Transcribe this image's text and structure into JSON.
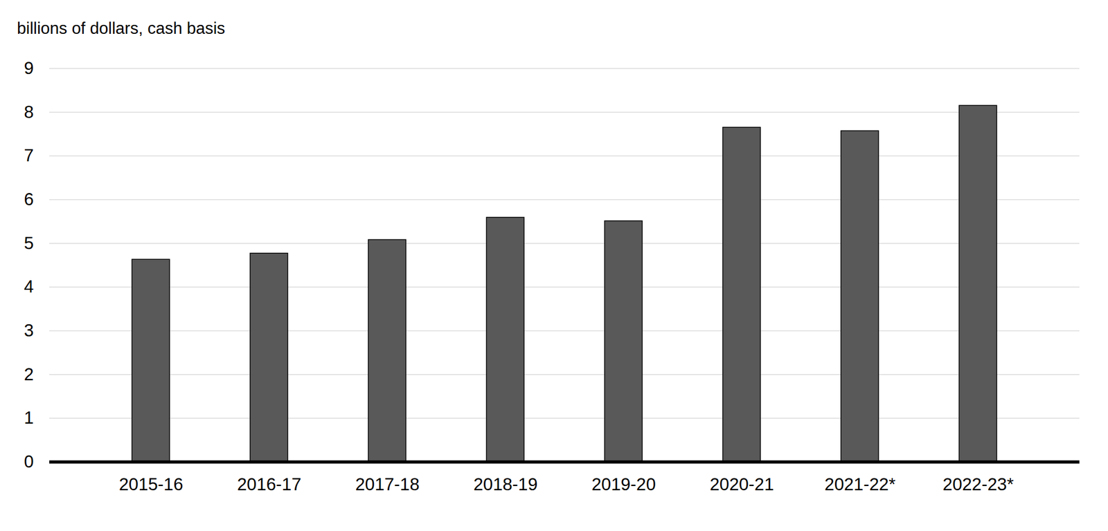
{
  "chart_data": {
    "type": "bar",
    "y_label": "billions of dollars, cash basis",
    "categories": [
      "2015-16",
      "2016-17",
      "2017-18",
      "2018-19",
      "2019-20",
      "2020-21",
      "2021-22*",
      "2022-23*"
    ],
    "values": [
      4.63,
      4.77,
      5.08,
      5.59,
      5.51,
      7.65,
      7.57,
      8.15
    ],
    "color": "#595959",
    "ylim": [
      0,
      9
    ],
    "yticks": [
      0,
      1,
      2,
      3,
      4,
      5,
      6,
      7,
      8,
      9
    ],
    "grid": true
  }
}
